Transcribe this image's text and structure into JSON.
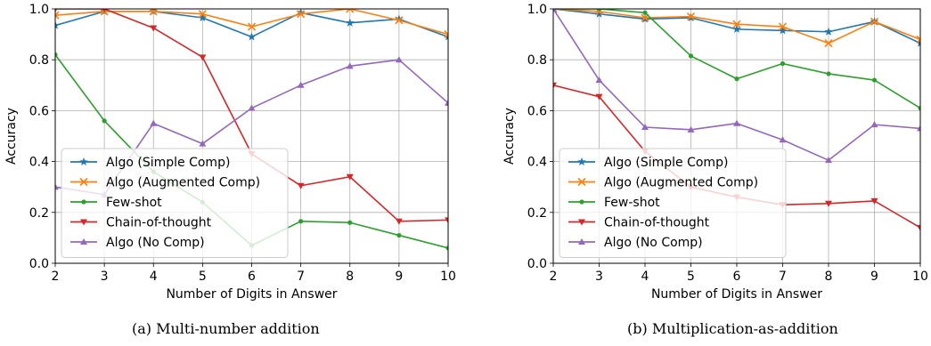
{
  "chart_data": [
    {
      "type": "line",
      "caption": "(a)  Multi-number addition",
      "xlabel": "Number of Digits in Answer",
      "ylabel": "Accuracy",
      "x": [
        2,
        3,
        4,
        5,
        6,
        7,
        8,
        9,
        10
      ],
      "xlim": [
        2,
        10
      ],
      "ylim": [
        0,
        1
      ],
      "xticks": [
        "2",
        "3",
        "4",
        "5",
        "6",
        "7",
        "8",
        "9",
        "10"
      ],
      "yticks": [
        "0.0",
        "0.2",
        "0.4",
        "0.6",
        "0.8",
        "1.0"
      ],
      "grid": true,
      "legend_position": "lower-left",
      "series": [
        {
          "name": "Algo (Simple Comp)",
          "color": "#1f77b4",
          "marker": "star",
          "values": [
            0.935,
            0.99,
            0.99,
            0.965,
            0.89,
            0.985,
            0.945,
            0.96,
            0.89
          ]
        },
        {
          "name": "Algo (Augmented Comp)",
          "color": "#ff7f0e",
          "marker": "x",
          "values": [
            0.975,
            0.99,
            0.99,
            0.98,
            0.93,
            0.98,
            1.0,
            0.955,
            0.9
          ]
        },
        {
          "name": "Few-shot",
          "color": "#2ca02c",
          "marker": "dot",
          "values": [
            0.82,
            0.56,
            0.36,
            0.24,
            0.07,
            0.165,
            0.16,
            0.11,
            0.06
          ]
        },
        {
          "name": "Chain-of-thought",
          "color": "#d62728",
          "marker": "triangle-down",
          "values": [
            1.0,
            1.0,
            0.925,
            0.81,
            0.43,
            0.305,
            0.34,
            0.165,
            0.17
          ]
        },
        {
          "name": "Algo (No Comp)",
          "color": "#9467bd",
          "marker": "triangle-up",
          "values": [
            0.3,
            0.27,
            0.55,
            0.47,
            0.61,
            0.7,
            0.775,
            0.8,
            0.63
          ]
        }
      ]
    },
    {
      "type": "line",
      "caption": "(b)  Multiplication-as-addition",
      "xlabel": "Number of Digits in Answer",
      "ylabel": "Accuracy",
      "x": [
        2,
        3,
        4,
        5,
        6,
        7,
        8,
        9,
        10
      ],
      "xlim": [
        2,
        10
      ],
      "ylim": [
        0,
        1
      ],
      "xticks": [
        "2",
        "3",
        "4",
        "5",
        "6",
        "7",
        "8",
        "9",
        "10"
      ],
      "yticks": [
        "0.0",
        "0.2",
        "0.4",
        "0.6",
        "0.8",
        "1.0"
      ],
      "grid": true,
      "legend_position": "lower-left",
      "series": [
        {
          "name": "Algo (Simple Comp)",
          "color": "#1f77b4",
          "marker": "star",
          "values": [
            1.0,
            0.98,
            0.96,
            0.965,
            0.92,
            0.915,
            0.91,
            0.95,
            0.865
          ]
        },
        {
          "name": "Algo (Augmented Comp)",
          "color": "#ff7f0e",
          "marker": "x",
          "values": [
            1.0,
            0.99,
            0.965,
            0.97,
            0.94,
            0.93,
            0.865,
            0.95,
            0.88
          ]
        },
        {
          "name": "Few-shot",
          "color": "#2ca02c",
          "marker": "dot",
          "values": [
            1.0,
            1.0,
            0.985,
            0.815,
            0.725,
            0.785,
            0.745,
            0.72,
            0.61
          ]
        },
        {
          "name": "Chain-of-thought",
          "color": "#d62728",
          "marker": "triangle-down",
          "values": [
            0.7,
            0.655,
            0.44,
            0.3,
            0.26,
            0.23,
            0.235,
            0.245,
            0.14
          ]
        },
        {
          "name": "Algo (No Comp)",
          "color": "#9467bd",
          "marker": "triangle-up",
          "values": [
            1.0,
            0.72,
            0.535,
            0.525,
            0.55,
            0.485,
            0.405,
            0.545,
            0.53
          ]
        }
      ]
    }
  ]
}
